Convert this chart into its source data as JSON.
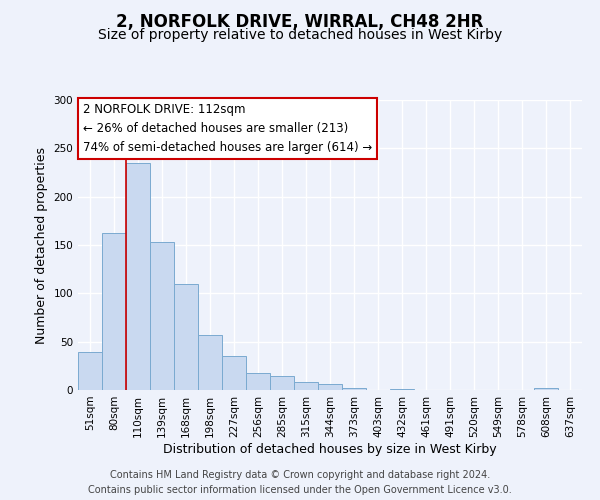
{
  "title": "2, NORFOLK DRIVE, WIRRAL, CH48 2HR",
  "subtitle": "Size of property relative to detached houses in West Kirby",
  "xlabel": "Distribution of detached houses by size in West Kirby",
  "ylabel": "Number of detached properties",
  "categories": [
    "51sqm",
    "80sqm",
    "110sqm",
    "139sqm",
    "168sqm",
    "198sqm",
    "227sqm",
    "256sqm",
    "285sqm",
    "315sqm",
    "344sqm",
    "373sqm",
    "403sqm",
    "432sqm",
    "461sqm",
    "491sqm",
    "520sqm",
    "549sqm",
    "578sqm",
    "608sqm",
    "637sqm"
  ],
  "values": [
    39,
    162,
    235,
    153,
    110,
    57,
    35,
    18,
    15,
    8,
    6,
    2,
    0,
    1,
    0,
    0,
    0,
    0,
    0,
    2,
    0
  ],
  "bar_color": "#c9d9f0",
  "bar_edge_color": "#7aaad0",
  "ylim": [
    0,
    300
  ],
  "yticks": [
    0,
    50,
    100,
    150,
    200,
    250,
    300
  ],
  "vline_index": 2,
  "vline_color": "#cc0000",
  "annotation_box_text": "2 NORFOLK DRIVE: 112sqm\n← 26% of detached houses are smaller (213)\n74% of semi-detached houses are larger (614) →",
  "annotation_box_color": "#cc0000",
  "footer_line1": "Contains HM Land Registry data © Crown copyright and database right 2024.",
  "footer_line2": "Contains public sector information licensed under the Open Government Licence v3.0.",
  "background_color": "#eef2fb",
  "grid_color": "#ffffff",
  "title_fontsize": 12,
  "subtitle_fontsize": 10,
  "axis_label_fontsize": 9,
  "tick_fontsize": 7.5,
  "annotation_fontsize": 8.5,
  "footer_fontsize": 7
}
